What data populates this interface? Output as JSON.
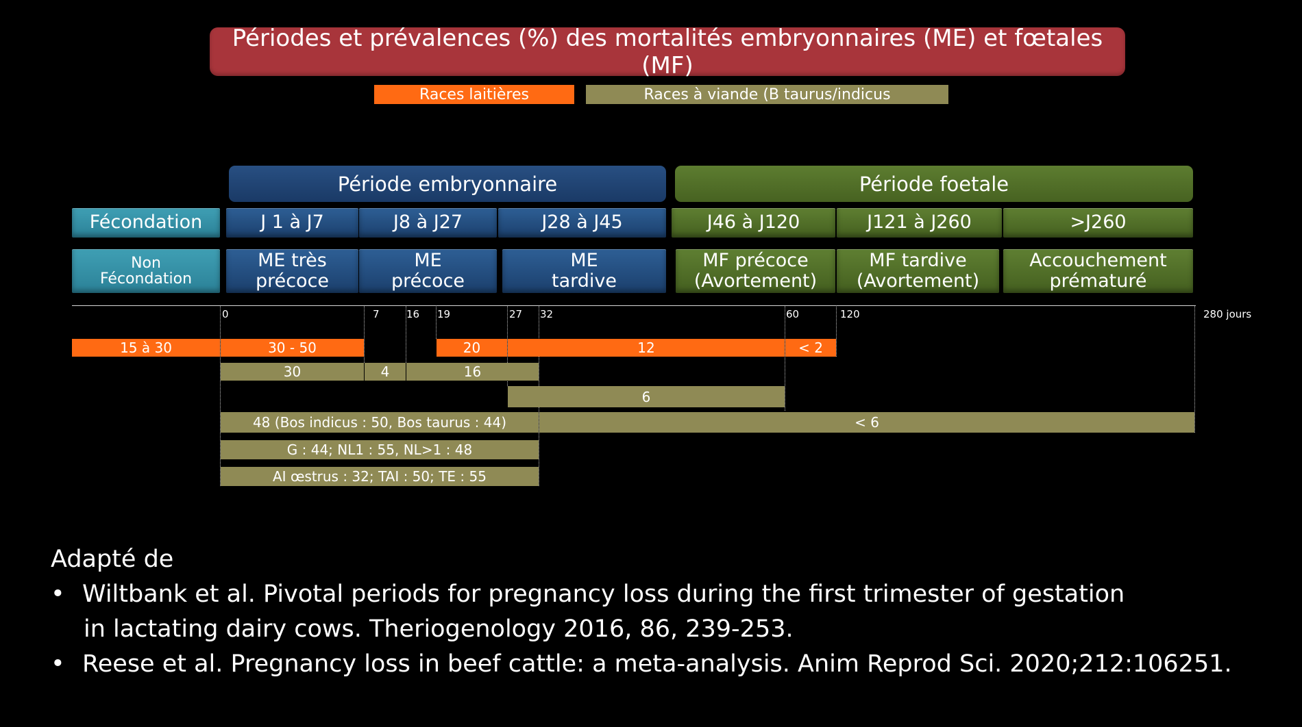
{
  "title": "Périodes et prévalences (%) des mortalités embryonnaires (ME) et fœtales (MF)",
  "legend": {
    "dairy": "Races laitières",
    "beef": "Races à viande (B taurus/indicus",
    "dairy_color": "#ff6a13",
    "beef_color": "#8f8a55"
  },
  "periods": {
    "embryo": "Période embryonnaire",
    "foetal": "Période foetale"
  },
  "row_days": {
    "fecondation": "Fécondation",
    "j1_j7": "J 1 à J7",
    "j8_j27": "J8 à J27",
    "j28_j45": "J28 à J45",
    "j46_j120": "J46 à J120",
    "j121_j260": "J121 à J260",
    "gt_j260": ">J260"
  },
  "row_stages": {
    "non_fecondation_1": "Non",
    "non_fecondation_2": "Fécondation",
    "me_tres_precoce_1": "ME très",
    "me_tres_precoce_2": "précoce",
    "me_precoce_1": "ME",
    "me_precoce_2": "précoce",
    "me_tardive_1": "ME",
    "me_tardive_2": "tardive",
    "mf_precoce_1": "MF précoce",
    "mf_precoce_2": "(Avortement)",
    "mf_tardive_1": "MF tardive",
    "mf_tardive_2": "(Avortement)",
    "accouchement_1": "Accouchement",
    "accouchement_2": "prématuré"
  },
  "timeline": {
    "ticks": [
      "0",
      "7",
      "16",
      "19",
      "27",
      "32",
      "60",
      "120",
      "280 jours"
    ]
  },
  "bars": {
    "dairy_pre": "15 à 30",
    "dairy_0_7": "30 - 50",
    "dairy_19_27": "20",
    "dairy_27_60": "12",
    "dairy_60_120": "< 2",
    "beef_0_7": "30",
    "beef_7_16": "4",
    "beef_16_32": "16",
    "beef_27_60": "6",
    "beef_0_32_species": "48 (Bos indicus : 50, Bos taurus : 44)",
    "beef_32_280": "< 6",
    "beef_parity": "G : 44; NL1 : 55, NL>1 : 48",
    "beef_method": "AI œstrus : 32; TAI : 50; TE : 55"
  },
  "references": {
    "intro": "Adapté de",
    "bullet": "•",
    "ref1_line1": "Wiltbank et al. Pivotal periods for pregnancy loss during the first trimester of gestation",
    "ref1_line2": "in lactating dairy cows. Theriogenology 2016, 86, 239-253.",
    "ref2": "Reese et al.  Pregnancy loss in beef cattle: a meta-analysis. Anim Reprod Sci. 2020;212:106251."
  }
}
